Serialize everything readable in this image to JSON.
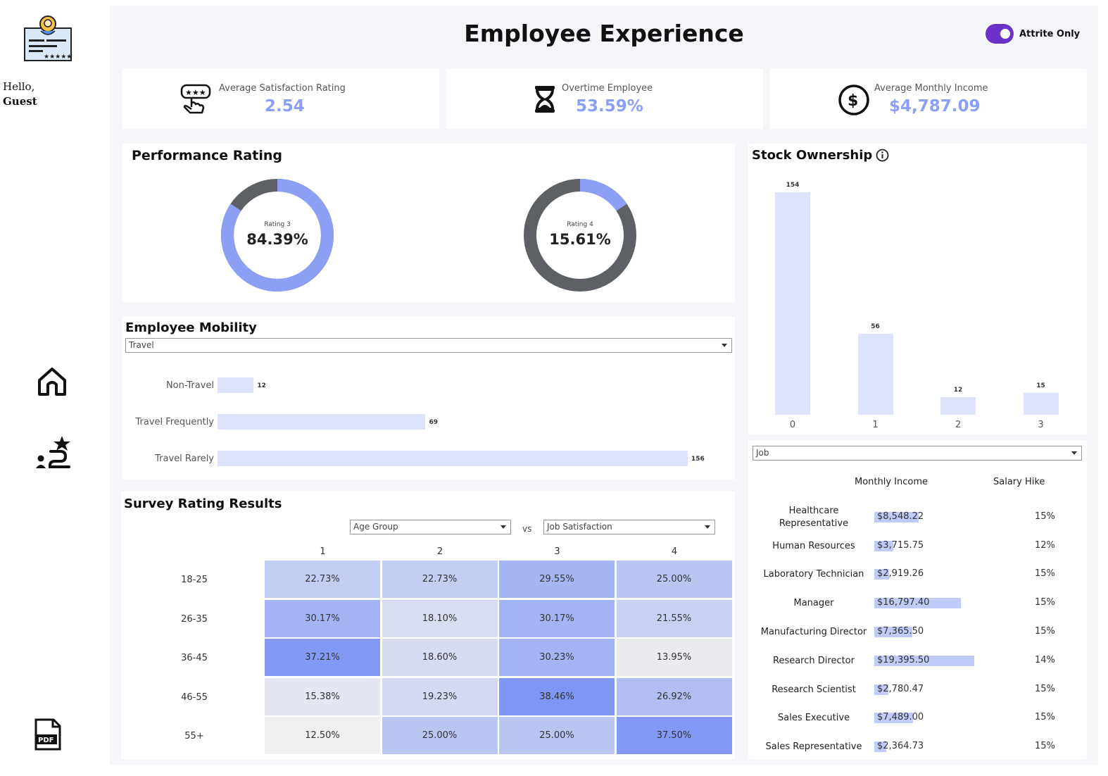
{
  "sidebar": {
    "greeting_line1": "Hello,",
    "greeting_line2": "Guest",
    "icons": [
      "profile-card-icon",
      "home-icon",
      "user-journey-icon",
      "pdf-icon"
    ]
  },
  "header": {
    "title": "Employee Experience",
    "toggle_label": "Attrite Only",
    "toggle_on": true,
    "accent": "#6a32c9"
  },
  "kpis": [
    {
      "label": "Average Satisfaction Rating",
      "value": "2.54",
      "icon": "rating-hand-icon"
    },
    {
      "label": "Overtime Employee",
      "value": "53.59%",
      "icon": "hourglass-icon"
    },
    {
      "label": "Average Monthly Income",
      "value": "$4,787.09",
      "icon": "dollar-circle-icon"
    }
  ],
  "performance": {
    "title": "Performance Rating",
    "donuts": [
      {
        "caption": "Rating 3",
        "value": "84.39%",
        "fraction": 0.8439
      },
      {
        "caption": "Rating 4",
        "value": "15.61%",
        "fraction": 0.1561
      }
    ],
    "colors": {
      "blue": "#8c9ff5",
      "gray": "#5d6065"
    }
  },
  "mobility": {
    "title": "Employee Mobility",
    "selected": "Travel",
    "rows": [
      {
        "label": "Non-Travel",
        "value": "12"
      },
      {
        "label": "Travel Frequently",
        "value": "69"
      },
      {
        "label": "Travel Rarely",
        "value": "156"
      }
    ]
  },
  "stock": {
    "title": "Stock Ownership",
    "info_icon": "info-icon",
    "categories": [
      "0",
      "1",
      "2",
      "3"
    ],
    "values": [
      "154",
      "56",
      "12",
      "15"
    ]
  },
  "survey": {
    "title": "Survey Rating Results",
    "select_left": "Age Group",
    "vs": "vs",
    "select_right": "Job Satisfaction",
    "columns": [
      "1",
      "2",
      "3",
      "4"
    ],
    "rows": [
      "18-25",
      "26-35",
      "36-45",
      "46-55",
      "55+"
    ],
    "cells": [
      [
        "22.73%",
        "22.73%",
        "29.55%",
        "25.00%"
      ],
      [
        "30.17%",
        "18.10%",
        "30.17%",
        "21.55%"
      ],
      [
        "37.21%",
        "18.60%",
        "30.23%",
        "13.95%"
      ],
      [
        "15.38%",
        "19.23%",
        "38.46%",
        "26.92%"
      ],
      [
        "12.50%",
        "25.00%",
        "25.00%",
        "37.50%"
      ]
    ]
  },
  "jobs": {
    "selected": "Job",
    "col_income": "Monthly Income",
    "col_hike": "Salary Hike",
    "rows": [
      {
        "name": "Healthcare Representative",
        "income": "$8,548.22",
        "hike": "15%"
      },
      {
        "name": "Human Resources",
        "income": "$3,715.75",
        "hike": "12%"
      },
      {
        "name": "Laboratory Technician",
        "income": "$2,919.26",
        "hike": "15%"
      },
      {
        "name": "Manager",
        "income": "$16,797.40",
        "hike": "15%"
      },
      {
        "name": "Manufacturing Director",
        "income": "$7,365.50",
        "hike": "15%"
      },
      {
        "name": "Research Director",
        "income": "$19,395.50",
        "hike": "14%"
      },
      {
        "name": "Research Scientist",
        "income": "$2,780.47",
        "hike": "15%"
      },
      {
        "name": "Sales Executive",
        "income": "$7,489.00",
        "hike": "15%"
      },
      {
        "name": "Sales Representative",
        "income": "$2,364.73",
        "hike": "15%"
      }
    ]
  }
}
